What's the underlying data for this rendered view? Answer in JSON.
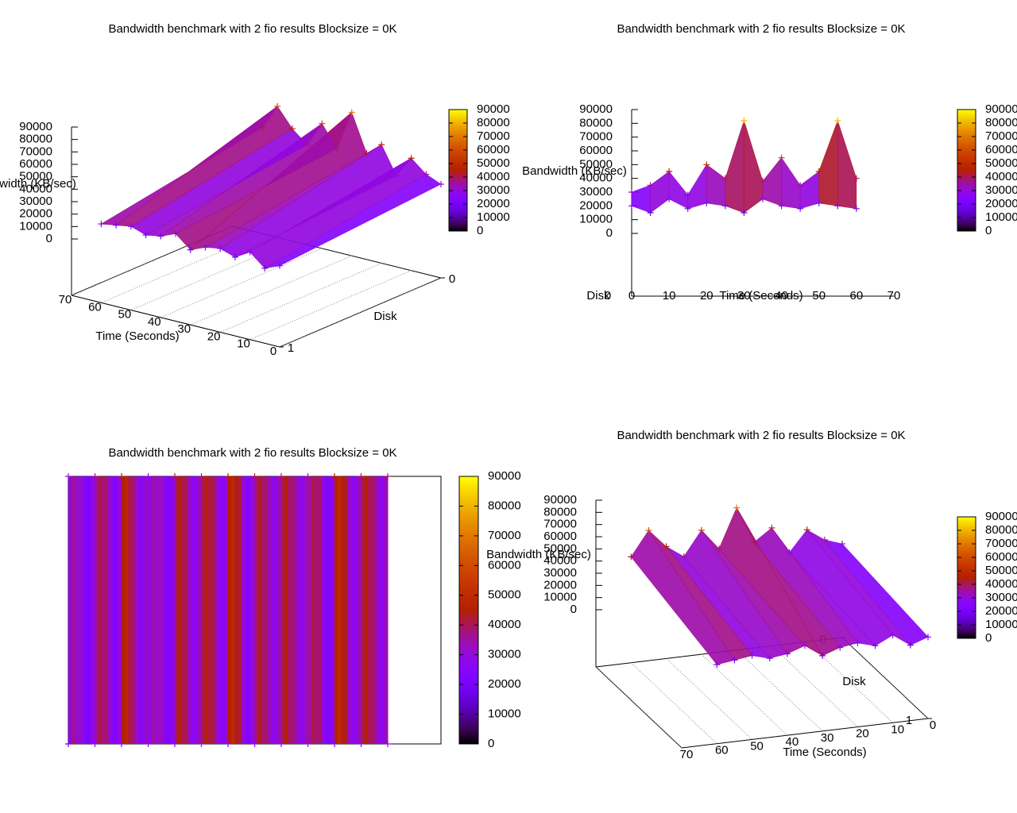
{
  "chart_data": [
    {
      "type": "surface3d",
      "title": "Bandwidth benchmark with 2 fio results  Blocksize = 0K",
      "xlabel": "Time (Seconds)",
      "ylabel": "Disk",
      "zlabel": "Bandwidth (KB/sec)",
      "x": [
        0,
        5,
        10,
        15,
        20,
        25,
        30,
        35,
        40,
        45,
        50,
        55,
        60
      ],
      "values": [
        [
          30000,
          35000,
          45000,
          28000,
          50000,
          40000,
          70000,
          38000,
          55000,
          35000,
          45000,
          60000,
          40000
        ],
        [
          20000,
          15000,
          25000,
          18000,
          22000,
          20000,
          15000,
          25000,
          20000,
          18000,
          22000,
          20000,
          18000
        ]
      ],
      "xlim": [
        0,
        70
      ],
      "xticks": [
        0,
        10,
        20,
        30,
        40,
        50,
        60,
        70
      ],
      "ylim": [
        0,
        1
      ],
      "yticks": [
        0,
        1
      ],
      "zlim": [
        0,
        90000
      ],
      "zticks": [
        0,
        10000,
        20000,
        30000,
        40000,
        50000,
        60000,
        70000,
        80000,
        90000
      ],
      "cblim": [
        0,
        90000
      ],
      "cbticks": [
        0,
        10000,
        20000,
        30000,
        40000,
        50000,
        60000,
        70000,
        80000,
        90000
      ]
    },
    {
      "type": "surface3d",
      "title": "Bandwidth benchmark with 2 fio results  Blocksize = 0K",
      "xlabel": "Time (Seconds)",
      "ylabel": "Disk",
      "zlabel": "Bandwidth (KB/sec)",
      "x": [
        0,
        5,
        10,
        15,
        20,
        25,
        30,
        35,
        40,
        45,
        50,
        55,
        60
      ],
      "values": [
        [
          30000,
          35000,
          45000,
          28000,
          50000,
          40000,
          82000,
          38000,
          55000,
          35000,
          45000,
          82000,
          40000
        ],
        [
          20000,
          15000,
          25000,
          18000,
          22000,
          20000,
          15000,
          25000,
          20000,
          18000,
          22000,
          20000,
          18000
        ]
      ],
      "xlim": [
        0,
        70
      ],
      "xticks": [
        0,
        10,
        20,
        30,
        40,
        50,
        60,
        70
      ],
      "ylim": [
        0,
        1
      ],
      "yticks": [
        0
      ],
      "zlim": [
        0,
        90000
      ],
      "zticks": [
        0,
        10000,
        20000,
        30000,
        40000,
        50000,
        60000,
        70000,
        80000,
        90000
      ],
      "cblim": [
        0,
        90000
      ],
      "cbticks": [
        0,
        10000,
        20000,
        30000,
        40000,
        50000,
        60000,
        70000,
        80000,
        90000
      ]
    },
    {
      "type": "heatmap",
      "title": "Bandwidth benchmark with 2 fio results  Blocksize = 0K",
      "x": [
        0,
        5,
        10,
        15,
        20,
        25,
        30,
        35,
        40,
        45,
        50,
        55,
        60
      ],
      "values": [
        [
          30000,
          35000,
          45000,
          28000,
          40000,
          40000,
          45000,
          38000,
          40000,
          35000,
          45000,
          40000,
          40000
        ],
        [
          20000,
          25000,
          25000,
          28000,
          22000,
          30000,
          25000,
          25000,
          30000,
          28000,
          22000,
          30000,
          28000
        ]
      ],
      "xlim": [
        0,
        70
      ],
      "ylim": [
        0,
        1
      ],
      "cblim": [
        0,
        90000
      ],
      "cbticks": [
        0,
        10000,
        20000,
        30000,
        40000,
        50000,
        60000,
        70000,
        80000,
        90000
      ]
    },
    {
      "type": "surface3d",
      "title": "Bandwidth benchmark with 2 fio results  Blocksize = 0K",
      "xlabel": "Time (Seconds)",
      "ylabel": "Disk",
      "zlabel": "Bandwidth (KB/sec)",
      "x": [
        0,
        5,
        10,
        15,
        20,
        25,
        30,
        35,
        40,
        45,
        50,
        55,
        60
      ],
      "values": [
        [
          30000,
          35000,
          45000,
          28000,
          50000,
          40000,
          70000,
          38000,
          55000,
          35000,
          45000,
          60000,
          40000
        ],
        [
          20000,
          15000,
          25000,
          18000,
          22000,
          20000,
          15000,
          25000,
          20000,
          18000,
          22000,
          20000,
          18000
        ]
      ],
      "xlim": [
        0,
        70
      ],
      "xticks": [
        0,
        10,
        20,
        30,
        40,
        50,
        60,
        70
      ],
      "ylim": [
        0,
        1
      ],
      "yticks": [
        0,
        1
      ],
      "zlim": [
        0,
        90000
      ],
      "zticks": [
        0,
        10000,
        20000,
        30000,
        40000,
        50000,
        60000,
        70000,
        80000,
        90000
      ],
      "cblim": [
        0,
        90000
      ],
      "cbticks": [
        0,
        10000,
        20000,
        30000,
        40000,
        50000,
        60000,
        70000,
        80000,
        90000
      ]
    }
  ]
}
